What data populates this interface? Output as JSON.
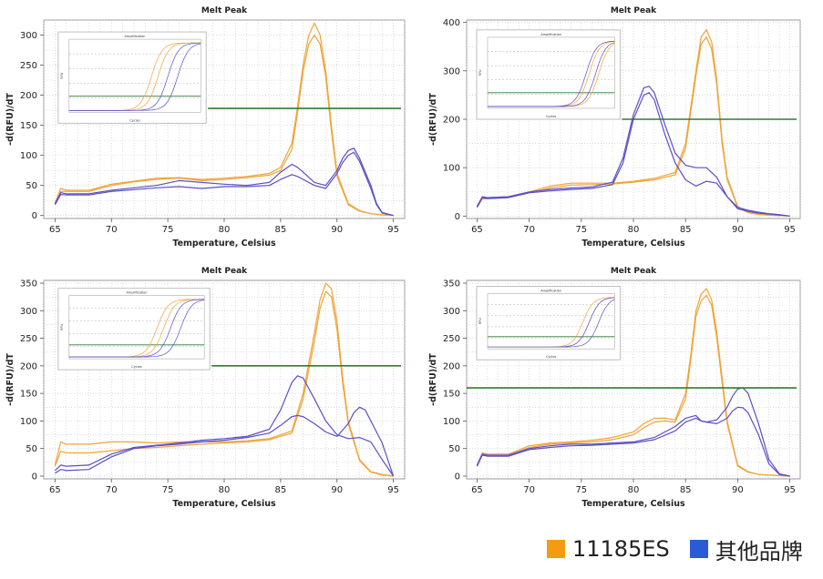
{
  "colors": {
    "orange": "#F0A43A",
    "blue": "#5A4FC8",
    "threshold": "#2E7D32",
    "grid": "#C8C8C8",
    "inset_frame": "#B0B0B0"
  },
  "legend": {
    "items": [
      {
        "label": "11185ES",
        "color": "#F39C12"
      },
      {
        "label": "其他品牌",
        "color": "#2B59D8"
      }
    ]
  },
  "chart_data": [
    {
      "type": "line",
      "title": "Melt Peak",
      "xlabel": "Temperature, Celsius",
      "ylabel": "-d(RFU)/dT",
      "xlim": [
        64,
        96
      ],
      "ylim": [
        -5,
        325
      ],
      "xticks": [
        65,
        70,
        75,
        80,
        85,
        90,
        95
      ],
      "yticks": [
        0,
        50,
        100,
        150,
        200,
        250,
        300
      ],
      "threshold": 178,
      "grid": true,
      "inset": {
        "title": "Amplification",
        "xlabel": "Cycles",
        "ylabel": "RFU",
        "x_extent": [
          0.04,
          0.45
        ],
        "y_extent": [
          0.48,
          0.94
        ],
        "orange_cycles": [
          25,
          27
        ],
        "blue_cycles": [
          30,
          33
        ]
      },
      "series": [
        {
          "color": "orange",
          "x": [
            65,
            65.5,
            66,
            68,
            70,
            72,
            74,
            76,
            78,
            80,
            82,
            84,
            85,
            86,
            86.5,
            87,
            87.5,
            88,
            88.5,
            89,
            89.5,
            90,
            91,
            92,
            93,
            94,
            95
          ],
          "y": [
            20,
            45,
            42,
            42,
            52,
            57,
            62,
            63,
            60,
            62,
            65,
            70,
            80,
            120,
            180,
            250,
            300,
            320,
            300,
            240,
            150,
            70,
            20,
            8,
            3,
            1,
            0
          ]
        },
        {
          "color": "orange",
          "x": [
            65,
            65.5,
            66,
            68,
            70,
            72,
            74,
            76,
            78,
            80,
            82,
            84,
            85,
            86,
            86.5,
            87,
            87.5,
            88,
            88.5,
            89,
            89.5,
            90,
            91,
            92,
            93,
            94,
            95
          ],
          "y": [
            18,
            40,
            40,
            40,
            50,
            56,
            60,
            62,
            58,
            60,
            63,
            67,
            75,
            110,
            170,
            240,
            285,
            300,
            285,
            230,
            140,
            65,
            18,
            7,
            3,
            1,
            0
          ]
        },
        {
          "color": "blue",
          "x": [
            65,
            65.5,
            66,
            68,
            70,
            72,
            74,
            76,
            78,
            80,
            82,
            84,
            85,
            86,
            86.5,
            87,
            88,
            89,
            90,
            90.5,
            91,
            91.5,
            92,
            93,
            93.5,
            94,
            95
          ],
          "y": [
            20,
            38,
            36,
            36,
            42,
            46,
            50,
            58,
            55,
            52,
            50,
            55,
            72,
            85,
            80,
            72,
            55,
            50,
            75,
            95,
            108,
            112,
            95,
            50,
            20,
            5,
            0
          ]
        },
        {
          "color": "blue",
          "x": [
            65,
            65.5,
            66,
            68,
            70,
            72,
            74,
            76,
            78,
            80,
            82,
            84,
            85,
            86,
            86.5,
            87,
            88,
            89,
            90,
            90.5,
            91,
            91.5,
            92,
            93,
            93.5,
            94,
            95
          ],
          "y": [
            18,
            35,
            34,
            34,
            40,
            43,
            46,
            48,
            45,
            48,
            48,
            50,
            60,
            68,
            65,
            60,
            50,
            45,
            70,
            88,
            100,
            105,
            90,
            45,
            18,
            4,
            0
          ]
        }
      ]
    },
    {
      "type": "line",
      "title": "Melt Peak",
      "xlabel": "Temperature, Celsius",
      "ylabel": "-d(RFU)/dT",
      "xlim": [
        64,
        96
      ],
      "ylim": [
        -5,
        405
      ],
      "xticks": [
        65,
        70,
        75,
        80,
        85,
        90,
        95
      ],
      "yticks": [
        0,
        100,
        200,
        300,
        400
      ],
      "threshold": 200,
      "grid": true,
      "inset": {
        "title": "Amplification",
        "xlabel": "Cycles",
        "ylabel": "RFU",
        "x_extent": [
          0.03,
          0.46
        ],
        "y_extent": [
          0.5,
          0.95
        ],
        "orange_cycles": [
          32,
          35
        ],
        "blue_cycles": [
          31,
          34
        ]
      },
      "series": [
        {
          "color": "orange",
          "x": [
            65,
            65.5,
            66,
            68,
            70,
            72,
            74,
            76,
            78,
            80,
            82,
            84,
            85,
            86,
            86.5,
            87,
            87.5,
            88,
            88.5,
            89,
            90,
            91,
            92,
            93,
            94,
            95
          ],
          "y": [
            20,
            38,
            38,
            40,
            50,
            62,
            68,
            68,
            68,
            72,
            78,
            90,
            150,
            300,
            370,
            385,
            360,
            280,
            160,
            80,
            20,
            8,
            4,
            2,
            1,
            0
          ]
        },
        {
          "color": "orange",
          "x": [
            65,
            65.5,
            66,
            68,
            70,
            72,
            74,
            76,
            78,
            80,
            82,
            84,
            85,
            86,
            86.5,
            87,
            87.5,
            88,
            88.5,
            89,
            90,
            91,
            92,
            93,
            94,
            95
          ],
          "y": [
            18,
            35,
            36,
            38,
            48,
            58,
            64,
            65,
            66,
            70,
            75,
            85,
            140,
            290,
            355,
            370,
            345,
            270,
            150,
            75,
            18,
            7,
            3,
            2,
            1,
            0
          ]
        },
        {
          "color": "blue",
          "x": [
            65,
            65.5,
            66,
            68,
            70,
            72,
            74,
            76,
            78,
            79,
            80,
            81,
            81.5,
            82,
            83,
            84,
            85,
            86,
            87,
            88,
            89,
            90,
            91,
            92,
            93,
            94,
            95
          ],
          "y": [
            20,
            40,
            38,
            40,
            50,
            55,
            58,
            60,
            70,
            120,
            210,
            265,
            268,
            255,
            190,
            130,
            105,
            100,
            100,
            80,
            40,
            15,
            10,
            6,
            4,
            2,
            0
          ]
        },
        {
          "color": "blue",
          "x": [
            65,
            65.5,
            66,
            68,
            70,
            72,
            74,
            76,
            78,
            79,
            80,
            81,
            81.5,
            82,
            83,
            84,
            85,
            86,
            87,
            88,
            89,
            90,
            91,
            92,
            93,
            94,
            95
          ],
          "y": [
            18,
            38,
            36,
            38,
            48,
            52,
            55,
            57,
            65,
            110,
            200,
            250,
            255,
            240,
            170,
            110,
            75,
            62,
            72,
            68,
            40,
            18,
            12,
            8,
            5,
            3,
            0
          ]
        }
      ]
    },
    {
      "type": "line",
      "title": "Melt Peak",
      "xlabel": "Temperature, Celsius",
      "ylabel": "-d(RFU)/dT",
      "xlim": [
        64,
        96
      ],
      "ylim": [
        -5,
        355
      ],
      "xticks": [
        65,
        70,
        75,
        80,
        85,
        90,
        95
      ],
      "yticks": [
        0,
        50,
        100,
        150,
        200,
        250,
        300,
        350
      ],
      "threshold": 200,
      "grid": true,
      "inset": {
        "title": "Amplification",
        "xlabel": "Cycles",
        "ylabel": "RFU",
        "x_extent": [
          0.04,
          0.46
        ],
        "y_extent": [
          0.55,
          0.96
        ],
        "orange_cycles": [
          26,
          28
        ],
        "blue_cycles": [
          30,
          33
        ]
      },
      "series": [
        {
          "color": "orange",
          "x": [
            65,
            65.5,
            66,
            68,
            70,
            72,
            74,
            76,
            78,
            80,
            82,
            84,
            86,
            87,
            88,
            88.5,
            89,
            89.5,
            90,
            90.5,
            91,
            92,
            93,
            94,
            95
          ],
          "y": [
            20,
            62,
            58,
            58,
            62,
            62,
            60,
            62,
            62,
            62,
            64,
            68,
            82,
            150,
            260,
            320,
            350,
            340,
            280,
            180,
            100,
            30,
            8,
            3,
            0
          ]
        },
        {
          "color": "orange",
          "x": [
            65,
            65.5,
            66,
            68,
            70,
            72,
            74,
            76,
            78,
            80,
            82,
            84,
            86,
            87,
            88,
            88.5,
            89,
            89.5,
            90,
            90.5,
            91,
            92,
            93,
            94,
            95
          ],
          "y": [
            18,
            45,
            42,
            42,
            46,
            50,
            52,
            55,
            58,
            60,
            62,
            66,
            78,
            140,
            245,
            305,
            335,
            325,
            265,
            170,
            95,
            28,
            7,
            2,
            0
          ]
        },
        {
          "color": "blue",
          "x": [
            65,
            65.5,
            66,
            68,
            70,
            72,
            74,
            76,
            78,
            80,
            82,
            84,
            85,
            86,
            86.5,
            87,
            88,
            89,
            90,
            91,
            92,
            93,
            94,
            95
          ],
          "y": [
            10,
            20,
            18,
            20,
            40,
            52,
            56,
            60,
            65,
            68,
            72,
            85,
            120,
            170,
            182,
            178,
            140,
            100,
            75,
            68,
            70,
            62,
            30,
            0
          ]
        },
        {
          "color": "blue",
          "x": [
            65,
            65.5,
            66,
            68,
            70,
            72,
            74,
            76,
            78,
            80,
            82,
            84,
            85,
            86,
            86.5,
            87,
            88,
            89,
            90,
            91,
            91.5,
            92,
            92.5,
            93,
            94,
            95
          ],
          "y": [
            5,
            12,
            10,
            12,
            35,
            50,
            55,
            58,
            62,
            65,
            70,
            78,
            92,
            108,
            110,
            108,
            95,
            80,
            72,
            95,
            115,
            125,
            120,
            100,
            60,
            0
          ]
        }
      ]
    },
    {
      "type": "line",
      "title": "Melt Peak",
      "xlabel": "Temperature, Celsius",
      "ylabel": "-d(RFU)/dT",
      "xlim": [
        64,
        96
      ],
      "ylim": [
        -5,
        355
      ],
      "xticks": [
        65,
        70,
        75,
        80,
        85,
        90,
        95
      ],
      "yticks": [
        0,
        50,
        100,
        150,
        200,
        250,
        300,
        350
      ],
      "threshold": 160,
      "grid": true,
      "inset": {
        "title": "Amplification",
        "xlabel": "Cycles",
        "ylabel": "RFU",
        "x_extent": [
          0.03,
          0.46
        ],
        "y_extent": [
          0.6,
          0.97
        ],
        "orange_cycles": [
          30,
          32
        ],
        "blue_cycles": [
          32,
          35
        ]
      },
      "series": [
        {
          "color": "orange",
          "x": [
            65,
            65.5,
            66,
            68,
            70,
            72,
            74,
            76,
            78,
            80,
            81,
            82,
            83,
            84,
            85,
            85.5,
            86,
            86.5,
            87,
            87.5,
            88,
            88.5,
            89,
            90,
            91,
            92,
            93,
            94,
            95
          ],
          "y": [
            20,
            42,
            40,
            40,
            55,
            60,
            62,
            65,
            70,
            80,
            95,
            105,
            105,
            102,
            150,
            220,
            300,
            330,
            340,
            320,
            260,
            180,
            100,
            20,
            8,
            3,
            2,
            1,
            0
          ]
        },
        {
          "color": "orange",
          "x": [
            65,
            65.5,
            66,
            68,
            70,
            72,
            74,
            76,
            78,
            80,
            81,
            82,
            83,
            84,
            85,
            85.5,
            86,
            86.5,
            87,
            87.5,
            88,
            88.5,
            89,
            90,
            91,
            92,
            93,
            94,
            95
          ],
          "y": [
            18,
            40,
            38,
            38,
            52,
            58,
            60,
            62,
            66,
            75,
            88,
            98,
            100,
            98,
            140,
            210,
            290,
            318,
            328,
            310,
            250,
            170,
            95,
            18,
            7,
            3,
            2,
            1,
            0
          ]
        },
        {
          "color": "blue",
          "x": [
            65,
            65.5,
            66,
            68,
            70,
            72,
            74,
            76,
            78,
            80,
            82,
            84,
            85,
            86,
            86.5,
            87,
            88,
            89,
            89.5,
            90,
            90.5,
            91,
            92,
            93,
            94,
            95
          ],
          "y": [
            20,
            40,
            38,
            38,
            50,
            55,
            58,
            58,
            60,
            62,
            70,
            90,
            105,
            110,
            100,
            98,
            102,
            125,
            145,
            158,
            160,
            150,
            95,
            30,
            4,
            0
          ]
        },
        {
          "color": "blue",
          "x": [
            65,
            65.5,
            66,
            68,
            70,
            72,
            74,
            76,
            78,
            80,
            82,
            84,
            85,
            86,
            86.5,
            87,
            88,
            89,
            89.5,
            90,
            90.5,
            91,
            92,
            93,
            94,
            95
          ],
          "y": [
            18,
            38,
            36,
            36,
            48,
            52,
            55,
            56,
            58,
            60,
            66,
            82,
            98,
            105,
            100,
            98,
            95,
            105,
            118,
            125,
            124,
            115,
            75,
            22,
            3,
            0
          ]
        }
      ]
    }
  ]
}
